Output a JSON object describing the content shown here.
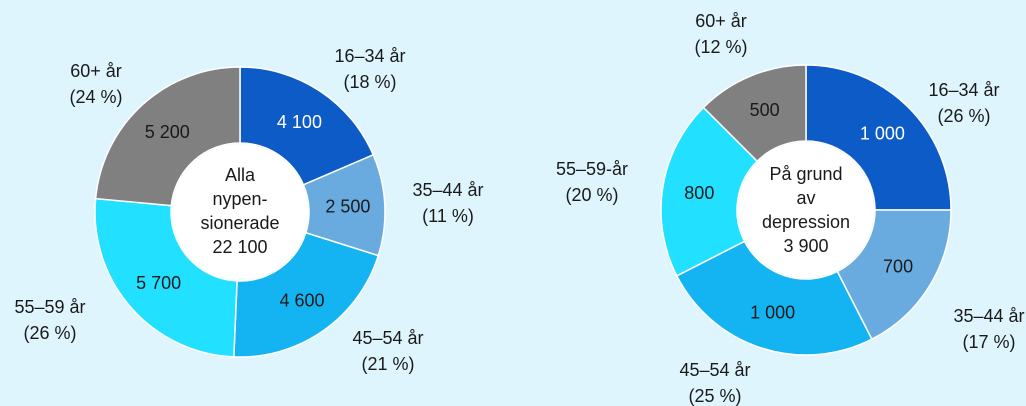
{
  "colors": {
    "background": "#dff5fd",
    "age_16_34": "#0d5bc6",
    "age_35_44": "#6aabdf",
    "age_45_54": "#14b4f2",
    "age_55_59": "#22e0ff",
    "age_60_plus": "#808080"
  },
  "chart_data": [
    {
      "type": "pie",
      "donut": true,
      "center_text": [
        "Alla",
        "nypen-",
        "sionerade",
        "22 100"
      ],
      "slices": [
        {
          "label": "16–34 år",
          "pct_label": "(18 %)",
          "value": 4100,
          "value_label": "4 100",
          "color": "#0d5bc6",
          "value_text_color": "#ffffff"
        },
        {
          "label": "35–44 år",
          "pct_label": "(11 %)",
          "value": 2500,
          "value_label": "2 500",
          "color": "#6aabdf",
          "value_text_color": "#1a1a1a"
        },
        {
          "label": "45–54 år",
          "pct_label": "(21 %)",
          "value": 4600,
          "value_label": "4 600",
          "color": "#14b4f2",
          "value_text_color": "#1a1a1a"
        },
        {
          "label": "55–59 år",
          "pct_label": "(26 %)",
          "value": 5700,
          "value_label": "5 700",
          "color": "#22e0ff",
          "value_text_color": "#1a1a1a"
        },
        {
          "label": "60+ år",
          "pct_label": "(24 %)",
          "value": 5200,
          "value_label": "5 200",
          "color": "#808080",
          "value_text_color": "#1a1a1a"
        }
      ]
    },
    {
      "type": "pie",
      "donut": true,
      "center_text": [
        "På grund",
        "av",
        "depression",
        "3 900"
      ],
      "slices": [
        {
          "label": "16–34 år",
          "pct_label": "(26 %)",
          "value": 1000,
          "value_label": "1 000",
          "color": "#0d5bc6",
          "value_text_color": "#ffffff"
        },
        {
          "label": "35–44 år",
          "pct_label": "(17 %)",
          "value": 700,
          "value_label": "700",
          "color": "#6aabdf",
          "value_text_color": "#1a1a1a"
        },
        {
          "label": "45–54 år",
          "pct_label": "(25 %)",
          "value": 1000,
          "value_label": "1 000",
          "color": "#14b4f2",
          "value_text_color": "#1a1a1a"
        },
        {
          "label": "55–59-år",
          "pct_label": "(20 %)",
          "value": 800,
          "value_label": "800",
          "color": "#22e0ff",
          "value_text_color": "#1a1a1a"
        },
        {
          "label": "60+ år",
          "pct_label": "(12 %)",
          "value": 500,
          "value_label": "500",
          "color": "#808080",
          "value_text_color": "#1a1a1a"
        }
      ]
    }
  ]
}
